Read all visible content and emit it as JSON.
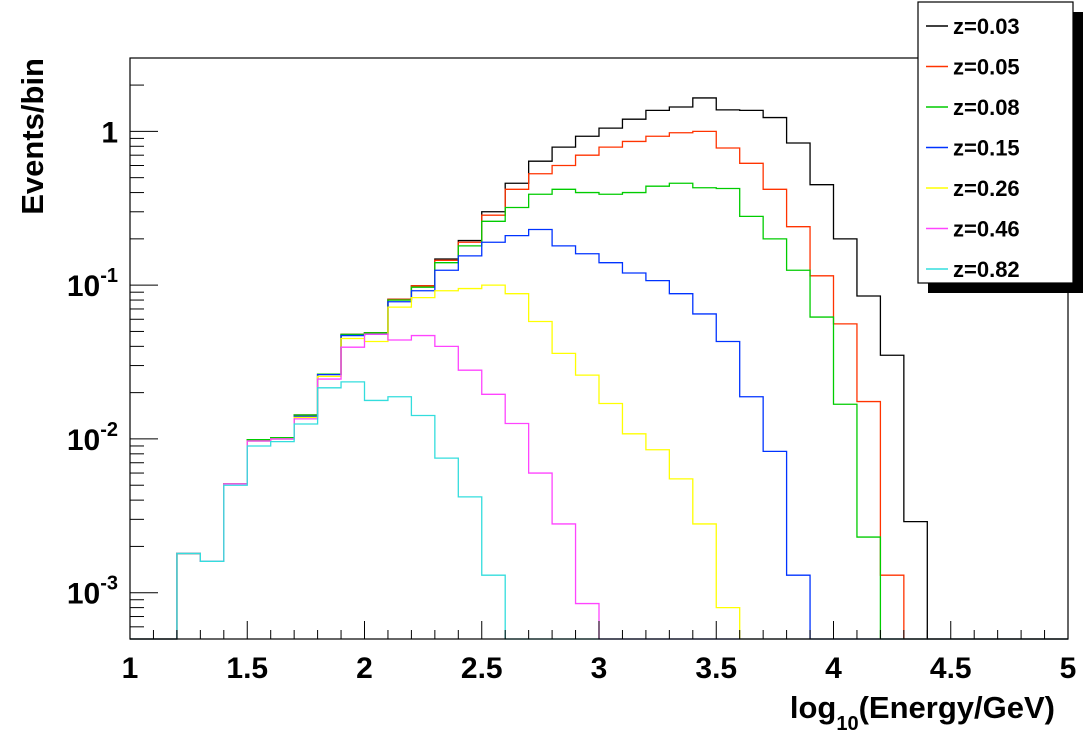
{
  "chart_data": {
    "type": "line",
    "style": "step-histogram",
    "xlabel_prefix": "log",
    "xlabel_sub": "10",
    "xlabel_suffix": "(Energy/GeV)",
    "ylabel": "Events/bin",
    "xlim": [
      1,
      5
    ],
    "ylim": [
      0.0005,
      3.0
    ],
    "yscale": "log",
    "bin_width": 0.1,
    "bin_edges_start": 1.2,
    "grid": false,
    "legend_position": "top-right",
    "x_ticks": [
      "1",
      "1.5",
      "2",
      "2.5",
      "3",
      "3.5",
      "4",
      "4.5",
      "5"
    ],
    "y_ticks": [
      {
        "base": "10",
        "exp": "-3",
        "value": 0.001
      },
      {
        "base": "10",
        "exp": "-2",
        "value": 0.01
      },
      {
        "base": "10",
        "exp": "-1",
        "value": 0.1
      },
      {
        "base": "1",
        "exp": "",
        "value": 1
      }
    ],
    "series": [
      {
        "name": "z=0.03",
        "color": "#000000",
        "values": [
          0.0018,
          0.0016,
          0.0051,
          0.0099,
          0.0102,
          0.0143,
          0.0264,
          0.0478,
          0.049,
          0.081,
          0.099,
          0.148,
          0.195,
          0.3,
          0.46,
          0.64,
          0.79,
          0.93,
          1.05,
          1.2,
          1.37,
          1.44,
          1.65,
          1.38,
          1.37,
          1.23,
          0.84,
          0.45,
          0.2,
          0.085,
          0.035,
          0.0029,
          0.0,
          0.0,
          0.0,
          0.0,
          0.0,
          0.0
        ]
      },
      {
        "name": "z=0.05",
        "color": "#ff3300",
        "values": [
          0.0018,
          0.0016,
          0.0051,
          0.0099,
          0.0102,
          0.0143,
          0.0264,
          0.0478,
          0.049,
          0.081,
          0.099,
          0.145,
          0.19,
          0.285,
          0.42,
          0.53,
          0.6,
          0.7,
          0.79,
          0.86,
          0.93,
          0.98,
          1.0,
          0.78,
          0.62,
          0.42,
          0.24,
          0.115,
          0.056,
          0.0175,
          0.0013,
          0.0,
          0.0,
          0.0,
          0.0,
          0.0,
          0.0,
          0.0
        ]
      },
      {
        "name": "z=0.08",
        "color": "#00cc00",
        "values": [
          0.0018,
          0.0016,
          0.0051,
          0.0099,
          0.0102,
          0.0143,
          0.0264,
          0.0478,
          0.049,
          0.08,
          0.097,
          0.14,
          0.18,
          0.26,
          0.32,
          0.39,
          0.42,
          0.4,
          0.39,
          0.4,
          0.44,
          0.46,
          0.43,
          0.425,
          0.28,
          0.2,
          0.125,
          0.062,
          0.0168,
          0.0023,
          0.0,
          0.0,
          0.0,
          0.0,
          0.0,
          0.0,
          0.0,
          0.0
        ]
      },
      {
        "name": "z=0.15",
        "color": "#0033ff",
        "values": [
          0.0018,
          0.0016,
          0.0051,
          0.0097,
          0.01,
          0.014,
          0.0262,
          0.047,
          0.048,
          0.078,
          0.092,
          0.125,
          0.155,
          0.19,
          0.21,
          0.23,
          0.18,
          0.16,
          0.14,
          0.12,
          0.107,
          0.088,
          0.065,
          0.043,
          0.0188,
          0.0083,
          0.0013,
          0.0,
          0.0,
          0.0,
          0.0,
          0.0,
          0.0,
          0.0,
          0.0,
          0.0,
          0.0,
          0.0
        ]
      },
      {
        "name": "z=0.26",
        "color": "#ffff00",
        "values": [
          0.0018,
          0.0016,
          0.0051,
          0.0097,
          0.01,
          0.0138,
          0.0255,
          0.045,
          0.043,
          0.072,
          0.083,
          0.092,
          0.095,
          0.1,
          0.088,
          0.058,
          0.036,
          0.026,
          0.017,
          0.0108,
          0.0085,
          0.0055,
          0.0028,
          0.0008,
          0.0,
          0.0,
          0.0,
          0.0,
          0.0,
          0.0,
          0.0,
          0.0,
          0.0,
          0.0,
          0.0,
          0.0,
          0.0,
          0.0
        ]
      },
      {
        "name": "z=0.46",
        "color": "#ff44ff",
        "values": [
          0.0018,
          0.0016,
          0.0051,
          0.0097,
          0.01,
          0.0135,
          0.0245,
          0.0395,
          0.048,
          0.044,
          0.047,
          0.04,
          0.028,
          0.0195,
          0.0126,
          0.006,
          0.0028,
          0.00085,
          0.0,
          0.0,
          0.0,
          0.0,
          0.0,
          0.0,
          0.0,
          0.0,
          0.0,
          0.0,
          0.0,
          0.0,
          0.0,
          0.0,
          0.0,
          0.0,
          0.0,
          0.0,
          0.0,
          0.0
        ]
      },
      {
        "name": "z=0.82",
        "color": "#33dddd",
        "values": [
          0.0018,
          0.0016,
          0.005,
          0.009,
          0.0096,
          0.0125,
          0.0215,
          0.0235,
          0.0178,
          0.0188,
          0.0142,
          0.0075,
          0.0042,
          0.0013,
          0.00045,
          0.0,
          0.0,
          0.0,
          0.0,
          0.0,
          0.0,
          0.0,
          0.0,
          0.0,
          0.0,
          0.0,
          0.0,
          0.0,
          0.0,
          0.0,
          0.0,
          0.0,
          0.0,
          0.0,
          0.0,
          0.0,
          0.0,
          0.0
        ]
      }
    ]
  }
}
